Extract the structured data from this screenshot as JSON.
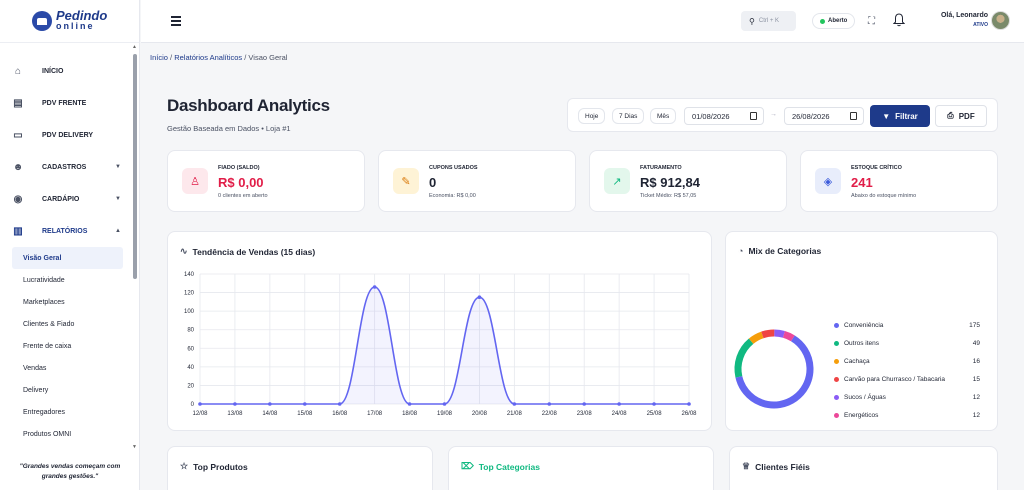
{
  "sidebar": {
    "logo": {
      "line1": "Pedindo",
      "line2": "online"
    },
    "nav": [
      {
        "label": "INÍCIO",
        "icon": "home-icon"
      },
      {
        "label": "PDV FRENTE",
        "icon": "register-icon"
      },
      {
        "label": "PDV DELIVERY",
        "icon": "monitor-icon"
      },
      {
        "label": "CADASTROS",
        "icon": "users-icon",
        "arrow": "▼"
      },
      {
        "label": "CARDÁPIO",
        "icon": "food-icon",
        "arrow": "▼"
      },
      {
        "label": "RELATÓRIOS",
        "icon": "report-icon",
        "arrow": "▲"
      }
    ],
    "subnav": [
      "Visão Geral",
      "Lucratividade",
      "Marketplaces",
      "Clientes & Fiado",
      "Frente de caixa",
      "Vendas",
      "Delivery",
      "Entregadores",
      "Produtos OMNI"
    ],
    "quote": "\"Grandes vendas começam com grandes gestões.\""
  },
  "topbar": {
    "search_placeholder": "Ctrl + K",
    "status": "Aberto",
    "user_greeting": "Olá, Leonardo",
    "user_status": "ATIVO"
  },
  "breadcrumb": {
    "home": "Início",
    "section": "Relatórios Analíticos",
    "current": "Visao Geral"
  },
  "page": {
    "title": "Dashboard Analytics",
    "subtitle": "Gestão Baseada em Dados • Loja #1"
  },
  "filters": {
    "quick": [
      "Hoje",
      "7 Dias",
      "Mês"
    ],
    "date_from": "01/08/2026",
    "date_to": "26/08/2026",
    "filter_label": "Filtrar",
    "pdf_label": "PDF"
  },
  "kpis": [
    {
      "label": "FIADO (SALDO)",
      "value": "R$ 0,00",
      "sub": "0 clientes em aberto",
      "color": "#e11d48",
      "bg": "#fde8ec",
      "icon": "user-debt-icon"
    },
    {
      "label": "CUPONS USADOS",
      "value": "0",
      "sub": "Economia: R$ 0,00",
      "color": "#1f2433",
      "bg": "#fef3d6",
      "icon": "coupon-icon"
    },
    {
      "label": "FATURAMENTO",
      "value": "R$ 912,84",
      "sub": "Ticket Médio: R$ 57,05",
      "color": "#1f2433",
      "bg": "#e3f7ec",
      "icon": "trend-icon"
    },
    {
      "label": "ESTOQUE CRÍTICO",
      "value": "241",
      "sub": "Abaixo do estoque mínimo",
      "color": "#e11d48",
      "bg": "#e8edfb",
      "icon": "box-icon"
    }
  ],
  "sales_card": {
    "title": "Tendência de Vendas (15 dias)"
  },
  "chart_data": {
    "type": "area",
    "categories": [
      "12/08",
      "13/08",
      "14/08",
      "15/08",
      "16/08",
      "17/08",
      "18/08",
      "19/08",
      "20/08",
      "21/08",
      "22/08",
      "23/08",
      "24/08",
      "25/08",
      "26/08"
    ],
    "values": [
      0,
      0,
      0,
      0,
      0,
      126,
      0,
      0,
      115,
      0,
      0,
      0,
      0,
      0,
      0
    ],
    "ylim": [
      0,
      140
    ],
    "yticks": [
      0,
      20,
      40,
      60,
      80,
      100,
      120,
      140
    ],
    "grid": true,
    "color": "#6366f1"
  },
  "mix_card": {
    "title": "Mix de Categorias",
    "items": [
      {
        "label": "Conveniência",
        "value": 175,
        "color": "#6366f1"
      },
      {
        "label": "Outros itens",
        "value": 49,
        "color": "#10b981"
      },
      {
        "label": "Cachaça",
        "value": 16,
        "color": "#f59e0b"
      },
      {
        "label": "Carvão para Churrasco / Tabacaria",
        "value": 15,
        "color": "#ef4444"
      },
      {
        "label": "Sucos / Águas",
        "value": 12,
        "color": "#8b5cf6"
      },
      {
        "label": "Energéticos",
        "value": 12,
        "color": "#ec4899"
      }
    ]
  },
  "bottom_cards": [
    {
      "title": "Top Produtos",
      "icon": "star-icon",
      "color": "#1f2433"
    },
    {
      "title": "Top Categorias",
      "icon": "tag-icon",
      "color": "#10b981"
    },
    {
      "title": "Clientes Fiéis",
      "icon": "trophy-icon",
      "color": "#1f2433"
    }
  ]
}
